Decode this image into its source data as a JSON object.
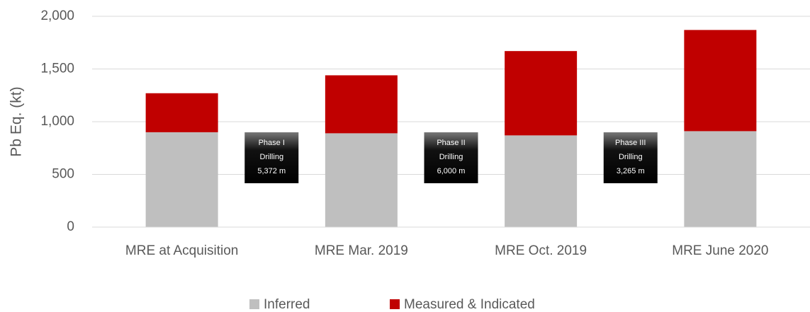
{
  "chart_data": {
    "type": "stacked_bar",
    "y_label": "Pb Eq. (kt)",
    "categories": [
      "MRE at Acquisition",
      "MRE Mar. 2019",
      "MRE Oct. 2019",
      "MRE June 2020"
    ],
    "series": [
      {
        "name": "Inferred",
        "color": "#bfbfbf",
        "values": [
          900,
          890,
          870,
          910
        ]
      },
      {
        "name": "Measured & Indicated",
        "color": "#c00000",
        "values": [
          370,
          550,
          800,
          960
        ]
      }
    ],
    "ylim": [
      0,
      2000
    ],
    "yticks": [
      0,
      500,
      {
        "value": 1000,
        "label": "1,000"
      },
      {
        "value": 1500,
        "label": "1,500"
      },
      {
        "value": 2000,
        "label": "2,000"
      }
    ],
    "grid": true,
    "legend": "bottom",
    "annotations": [
      {
        "text": [
          "Phase I",
          "Drilling",
          "5,372 m"
        ]
      },
      {
        "text": [
          "Phase II",
          "Drilling",
          "6,000 m"
        ]
      },
      {
        "text": [
          "Phase III",
          "Drilling",
          "3,265 m"
        ]
      }
    ]
  }
}
